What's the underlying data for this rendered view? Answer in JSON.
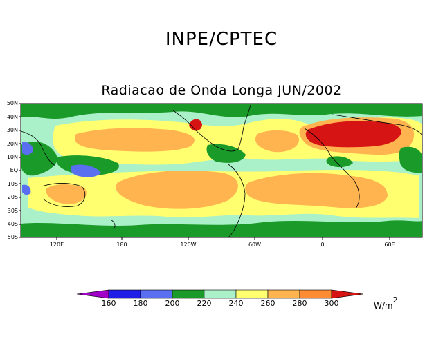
{
  "header": {
    "title": "INPE/CPTEC"
  },
  "map": {
    "title": "Radiacao de Onda Longa JUN/2002",
    "lat_labels": [
      "50N",
      "40N",
      "30N",
      "20N",
      "10N",
      "EQ",
      "10S",
      "20S",
      "30S",
      "40S",
      "50S"
    ],
    "lon_labels": [
      "120E",
      "180",
      "120W",
      "60W",
      "0",
      "60E"
    ]
  },
  "legend": {
    "labels": [
      "160",
      "180",
      "200",
      "220",
      "240",
      "260",
      "280",
      "300"
    ],
    "colors": [
      "#a000c8",
      "#1e1ee6",
      "#5a6ef0",
      "#1a9a28",
      "#aaf0c8",
      "#ffff70",
      "#ffb450",
      "#ff8c32",
      "#d71414"
    ],
    "units": "W/m",
    "units_exp": "2"
  }
}
